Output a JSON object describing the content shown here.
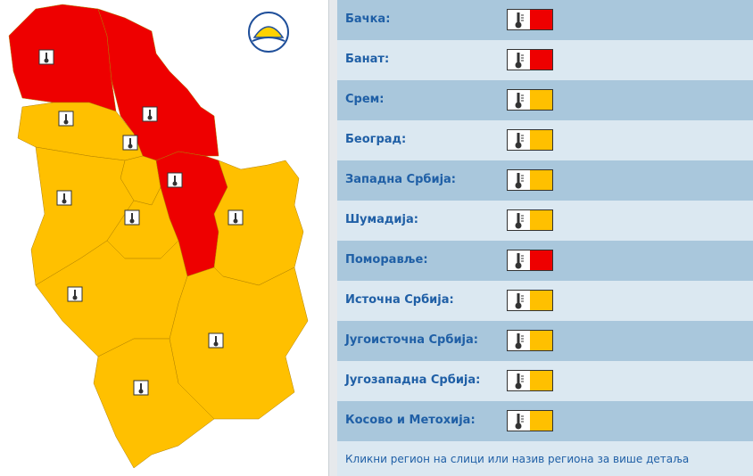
{
  "rows": [
    {
      "name": "Бачка:",
      "color": "#ee0000"
    },
    {
      "name": "Банат:",
      "color": "#ee0000"
    },
    {
      "name": "Срем:",
      "color": "#ffc000"
    },
    {
      "name": "Београд:",
      "color": "#ffc000"
    },
    {
      "name": "Западна Србија:",
      "color": "#ffc000"
    },
    {
      "name": "Шумадија:",
      "color": "#ffc000"
    },
    {
      "name": "Поморавље:",
      "color": "#ee0000"
    },
    {
      "name": "Источна Србија:",
      "color": "#ffc000"
    },
    {
      "name": "Југоисточна Србија:",
      "color": "#ffc000"
    },
    {
      "name": "Југозападна Србија:",
      "color": "#ffc000"
    },
    {
      "name": "Косово и Метохија:",
      "color": "#ffc000"
    }
  ],
  "footer": "Кликни регион на слици или назив региона за више детаља"
}
